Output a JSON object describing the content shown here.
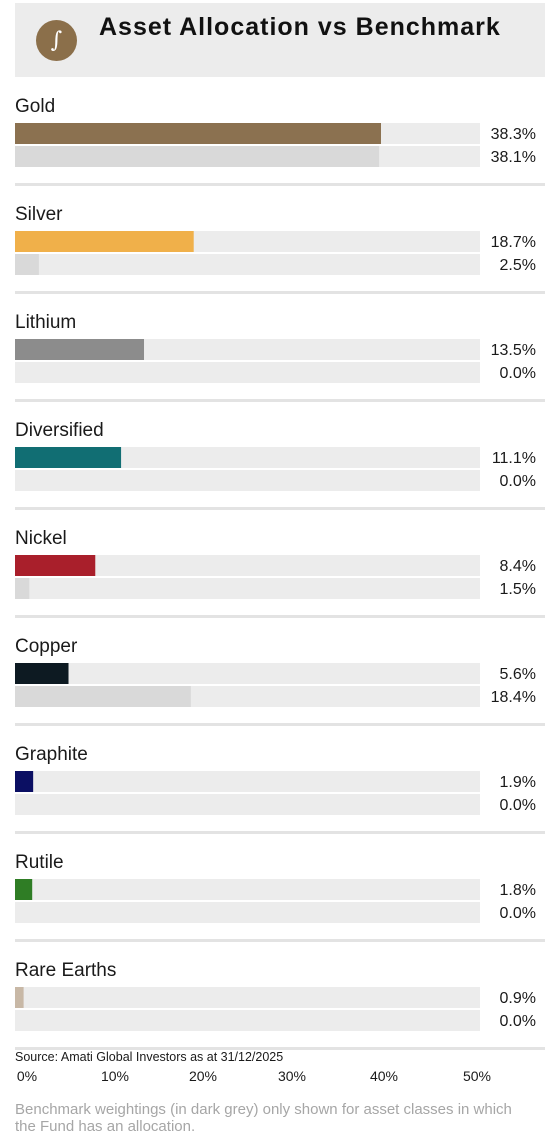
{
  "header": {
    "title": "Asset Allocation vs Benchmark",
    "logo_icon": "integral-sign-icon",
    "logo_glyph": "∫",
    "logo_color": "#8b6f4a"
  },
  "colors": {
    "benchmark_bar": "#d9d9d9",
    "track": "#ececec",
    "divider": "#e3e3e3"
  },
  "chart_data": {
    "type": "bar",
    "orientation": "horizontal",
    "title": "Asset Allocation vs Benchmark",
    "categories": [
      "Gold",
      "Silver",
      "Lithium",
      "Diversified",
      "Nickel",
      "Copper",
      "Graphite",
      "Rutile",
      "Rare Earths"
    ],
    "series": [
      {
        "values": [
          38.3,
          18.7,
          13.5,
          11.1,
          8.4,
          5.6,
          1.9,
          1.8,
          0.9
        ],
        "labels": [
          "38.3%",
          "18.7%",
          "13.5%",
          "11.1%",
          "8.4%",
          "5.6%",
          "1.9%",
          "1.8%",
          "0.9%"
        ],
        "colors": [
          "#8b7150",
          "#f0b04a",
          "#8c8c8c",
          "#116e73",
          "#a91f2b",
          "#0d1a22",
          "#0b0f63",
          "#2f7d25",
          "#c8b8a6"
        ]
      },
      {
        "values": [
          38.1,
          2.5,
          0.0,
          0.0,
          1.5,
          18.4,
          0.0,
          0.0,
          0.0
        ],
        "labels": [
          "38.1%",
          "2.5%",
          "0.0%",
          "0.0%",
          "1.5%",
          "18.4%",
          "0.0%",
          "0.0%",
          "0.0%"
        ],
        "color": "#d9d9d9"
      }
    ],
    "xlim": [
      0,
      50
    ],
    "x_ticks": [
      "0%",
      "10%",
      "20%",
      "30%",
      "40%",
      "50%"
    ],
    "grid": false,
    "legend": "none"
  },
  "source": "Source: Amati Global Investors as at 31/12/2025",
  "footnote": "Benchmark weightings (in dark grey) only shown for asset classes in which the Fund has an allocation."
}
